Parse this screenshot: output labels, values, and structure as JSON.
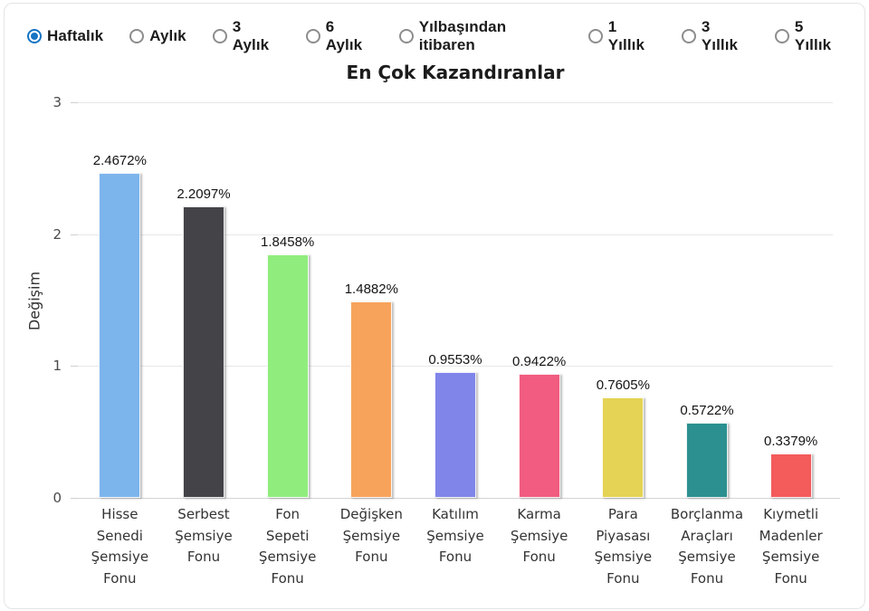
{
  "periods": {
    "accent_color": "#1574c4",
    "options": [
      {
        "label": "Haftalık",
        "selected": true
      },
      {
        "label": "Aylık",
        "selected": false
      },
      {
        "label": "3 Aylık",
        "selected": false
      },
      {
        "label": "6 Aylık",
        "selected": false
      },
      {
        "label": "Yılbaşından itibaren",
        "selected": false
      },
      {
        "label": "1 Yıllık",
        "selected": false
      },
      {
        "label": "3 Yıllık",
        "selected": false
      },
      {
        "label": "5 Yıllık",
        "selected": false
      }
    ]
  },
  "chart_data": {
    "type": "bar",
    "title": "En Çok Kazandıranlar",
    "xlabel": "",
    "ylabel": "Değişim",
    "ylim": [
      0,
      3
    ],
    "yticks": [
      0,
      1,
      2,
      3
    ],
    "grid": true,
    "legend": "none",
    "categories": [
      "Hisse Senedi Şemsiye Fonu",
      "Serbest Şemsiye Fonu",
      "Fon Sepeti Şemsiye Fonu",
      "Değişken Şemsiye Fonu",
      "Katılım Şemsiye Fonu",
      "Karma Şemsiye Fonu",
      "Para Piyasası Şemsiye Fonu",
      "Borçlanma Araçları Şemsiye Fonu",
      "Kıymetli Madenler Şemsiye Fonu"
    ],
    "values": [
      2.4672,
      2.2097,
      1.8458,
      1.4882,
      0.9553,
      0.9422,
      0.7605,
      0.5722,
      0.3379
    ],
    "value_labels": [
      "2.4672%",
      "2.2097%",
      "1.8458%",
      "1.4882%",
      "0.9553%",
      "0.9422%",
      "0.7605%",
      "0.5722%",
      "0.3379%"
    ],
    "bar_colors": [
      "#7cb5ec",
      "#434348",
      "#90ed7d",
      "#f7a35c",
      "#8085e9",
      "#f15c80",
      "#e4d354",
      "#2b908f",
      "#f45b5b"
    ],
    "grid_color": "#e7e7e7",
    "axis_line_color": "#d4d4d4"
  }
}
